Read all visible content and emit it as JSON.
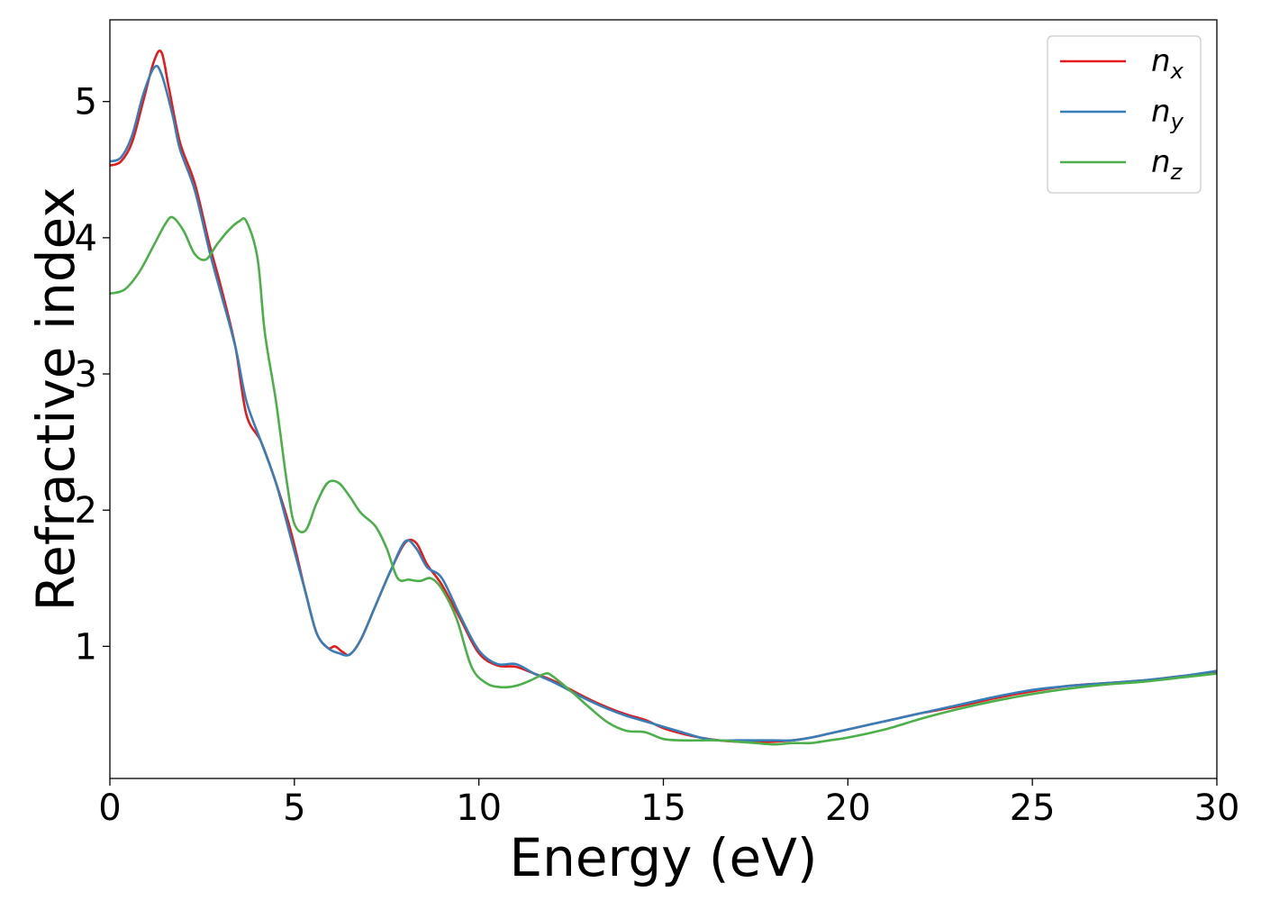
{
  "chart_data": {
    "type": "line",
    "title": "",
    "xlabel": "Energy (eV)",
    "ylabel": "Refractive index",
    "xlim": [
      0,
      30
    ],
    "ylim": [
      0.03,
      5.6
    ],
    "xticks": [
      0,
      5,
      10,
      15,
      20,
      25,
      30
    ],
    "xtick_labels": [
      "0",
      "5",
      "10",
      "15",
      "20",
      "25",
      "30"
    ],
    "yticks": [
      1,
      2,
      3,
      4,
      5
    ],
    "ytick_labels": [
      "1",
      "2",
      "3",
      "4",
      "5"
    ],
    "grid": false,
    "legend_position": "top-right",
    "series": [
      {
        "name": "n",
        "subscript": "x",
        "color": "#e41a1c",
        "points": [
          [
            0,
            4.53
          ],
          [
            0.3,
            4.56
          ],
          [
            0.6,
            4.7
          ],
          [
            0.9,
            5.0
          ],
          [
            1.2,
            5.3
          ],
          [
            1.4,
            5.36
          ],
          [
            1.6,
            5.1
          ],
          [
            1.9,
            4.7
          ],
          [
            2.3,
            4.4
          ],
          [
            2.7,
            3.95
          ],
          [
            3.0,
            3.65
          ],
          [
            3.4,
            3.2
          ],
          [
            3.7,
            2.7
          ],
          [
            4.1,
            2.5
          ],
          [
            4.5,
            2.2
          ],
          [
            4.9,
            1.85
          ],
          [
            5.3,
            1.4
          ],
          [
            5.6,
            1.1
          ],
          [
            5.9,
            0.99
          ],
          [
            6.1,
            1.0
          ],
          [
            6.3,
            0.96
          ],
          [
            6.5,
            0.94
          ],
          [
            6.8,
            1.05
          ],
          [
            7.2,
            1.3
          ],
          [
            7.6,
            1.55
          ],
          [
            8.0,
            1.76
          ],
          [
            8.3,
            1.76
          ],
          [
            8.6,
            1.6
          ],
          [
            9.0,
            1.45
          ],
          [
            9.5,
            1.2
          ],
          [
            10.0,
            0.95
          ],
          [
            10.5,
            0.86
          ],
          [
            11.0,
            0.85
          ],
          [
            11.5,
            0.8
          ],
          [
            12.0,
            0.75
          ],
          [
            12.5,
            0.68
          ],
          [
            13.0,
            0.61
          ],
          [
            13.5,
            0.55
          ],
          [
            14.0,
            0.5
          ],
          [
            14.5,
            0.46
          ],
          [
            15.0,
            0.4
          ],
          [
            15.5,
            0.36
          ],
          [
            16.0,
            0.33
          ],
          [
            16.5,
            0.31
          ],
          [
            17.0,
            0.3
          ],
          [
            17.5,
            0.3
          ],
          [
            18.0,
            0.3
          ],
          [
            18.5,
            0.31
          ],
          [
            19.0,
            0.33
          ],
          [
            19.5,
            0.36
          ],
          [
            20.0,
            0.39
          ],
          [
            21.0,
            0.45
          ],
          [
            22.0,
            0.51
          ],
          [
            23.0,
            0.56
          ],
          [
            24.0,
            0.62
          ],
          [
            25.0,
            0.67
          ],
          [
            26.0,
            0.71
          ],
          [
            27.0,
            0.73
          ],
          [
            28.0,
            0.75
          ],
          [
            29.0,
            0.78
          ],
          [
            30.0,
            0.81
          ]
        ]
      },
      {
        "name": "n",
        "subscript": "y",
        "color": "#377eb8",
        "points": [
          [
            0,
            4.56
          ],
          [
            0.3,
            4.59
          ],
          [
            0.6,
            4.75
          ],
          [
            0.9,
            5.05
          ],
          [
            1.2,
            5.25
          ],
          [
            1.4,
            5.2
          ],
          [
            1.7,
            4.9
          ],
          [
            1.9,
            4.65
          ],
          [
            2.3,
            4.35
          ],
          [
            2.7,
            3.9
          ],
          [
            3.0,
            3.6
          ],
          [
            3.4,
            3.2
          ],
          [
            3.7,
            2.8
          ],
          [
            4.1,
            2.5
          ],
          [
            4.5,
            2.2
          ],
          [
            4.9,
            1.8
          ],
          [
            5.3,
            1.4
          ],
          [
            5.6,
            1.1
          ],
          [
            5.9,
            0.99
          ],
          [
            6.2,
            0.95
          ],
          [
            6.5,
            0.94
          ],
          [
            6.8,
            1.05
          ],
          [
            7.2,
            1.3
          ],
          [
            7.6,
            1.55
          ],
          [
            8.0,
            1.77
          ],
          [
            8.3,
            1.72
          ],
          [
            8.6,
            1.58
          ],
          [
            9.0,
            1.5
          ],
          [
            9.5,
            1.22
          ],
          [
            10.0,
            0.97
          ],
          [
            10.5,
            0.87
          ],
          [
            11.0,
            0.87
          ],
          [
            11.5,
            0.8
          ],
          [
            12.0,
            0.74
          ],
          [
            12.5,
            0.67
          ],
          [
            13.0,
            0.6
          ],
          [
            13.5,
            0.54
          ],
          [
            14.0,
            0.49
          ],
          [
            14.5,
            0.45
          ],
          [
            15.0,
            0.41
          ],
          [
            15.5,
            0.37
          ],
          [
            16.0,
            0.33
          ],
          [
            16.5,
            0.31
          ],
          [
            17.0,
            0.31
          ],
          [
            17.5,
            0.31
          ],
          [
            18.0,
            0.31
          ],
          [
            18.5,
            0.31
          ],
          [
            19.0,
            0.33
          ],
          [
            19.5,
            0.36
          ],
          [
            20.0,
            0.39
          ],
          [
            21.0,
            0.45
          ],
          [
            22.0,
            0.51
          ],
          [
            23.0,
            0.57
          ],
          [
            24.0,
            0.63
          ],
          [
            25.0,
            0.68
          ],
          [
            26.0,
            0.71
          ],
          [
            27.0,
            0.73
          ],
          [
            28.0,
            0.75
          ],
          [
            29.0,
            0.78
          ],
          [
            30.0,
            0.82
          ]
        ]
      },
      {
        "name": "n",
        "subscript": "z",
        "color": "#4daf4a",
        "points": [
          [
            0,
            3.59
          ],
          [
            0.4,
            3.62
          ],
          [
            0.8,
            3.75
          ],
          [
            1.2,
            3.95
          ],
          [
            1.5,
            4.1
          ],
          [
            1.7,
            4.15
          ],
          [
            2.0,
            4.05
          ],
          [
            2.3,
            3.88
          ],
          [
            2.6,
            3.84
          ],
          [
            2.9,
            3.95
          ],
          [
            3.2,
            4.05
          ],
          [
            3.5,
            4.12
          ],
          [
            3.7,
            4.12
          ],
          [
            4.0,
            3.85
          ],
          [
            4.2,
            3.3
          ],
          [
            4.5,
            2.8
          ],
          [
            4.8,
            2.2
          ],
          [
            5.0,
            1.9
          ],
          [
            5.3,
            1.85
          ],
          [
            5.6,
            2.05
          ],
          [
            5.9,
            2.2
          ],
          [
            6.2,
            2.2
          ],
          [
            6.5,
            2.1
          ],
          [
            6.8,
            1.98
          ],
          [
            7.2,
            1.88
          ],
          [
            7.5,
            1.72
          ],
          [
            7.8,
            1.5
          ],
          [
            8.1,
            1.49
          ],
          [
            8.4,
            1.48
          ],
          [
            8.7,
            1.5
          ],
          [
            9.0,
            1.42
          ],
          [
            9.4,
            1.2
          ],
          [
            9.8,
            0.85
          ],
          [
            10.2,
            0.73
          ],
          [
            10.6,
            0.7
          ],
          [
            11.0,
            0.71
          ],
          [
            11.4,
            0.75
          ],
          [
            11.8,
            0.8
          ],
          [
            12.0,
            0.78
          ],
          [
            12.5,
            0.67
          ],
          [
            13.0,
            0.55
          ],
          [
            13.5,
            0.44
          ],
          [
            14.0,
            0.38
          ],
          [
            14.5,
            0.37
          ],
          [
            15.0,
            0.32
          ],
          [
            15.5,
            0.31
          ],
          [
            16.0,
            0.31
          ],
          [
            16.5,
            0.31
          ],
          [
            17.0,
            0.3
          ],
          [
            17.5,
            0.29
          ],
          [
            18.0,
            0.28
          ],
          [
            18.5,
            0.29
          ],
          [
            19.0,
            0.29
          ],
          [
            19.5,
            0.31
          ],
          [
            20.0,
            0.33
          ],
          [
            21.0,
            0.39
          ],
          [
            22.0,
            0.47
          ],
          [
            23.0,
            0.54
          ],
          [
            24.0,
            0.6
          ],
          [
            25.0,
            0.65
          ],
          [
            26.0,
            0.69
          ],
          [
            27.0,
            0.72
          ],
          [
            28.0,
            0.74
          ],
          [
            29.0,
            0.77
          ],
          [
            30.0,
            0.8
          ]
        ]
      }
    ]
  }
}
